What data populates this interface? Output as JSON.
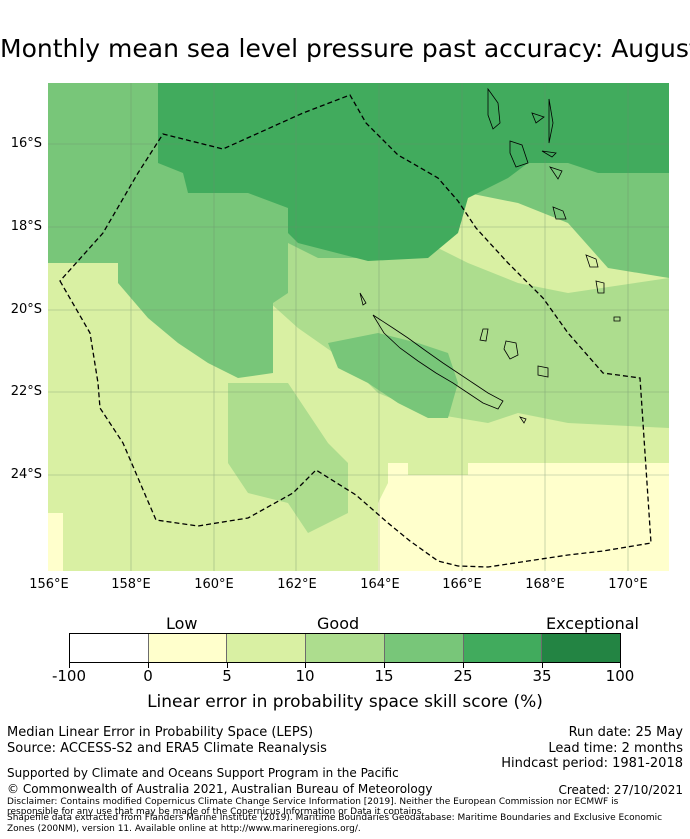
{
  "title": "Monthly mean sea level pressure past accuracy: August",
  "map": {
    "lat_labels": [
      "16°S",
      "18°S",
      "20°S",
      "22°S",
      "24°S"
    ],
    "lon_labels": [
      "156°E",
      "158°E",
      "160°E",
      "162°E",
      "164°E",
      "166°E",
      "168°E",
      "170°E"
    ],
    "boundary": "dashed EEZ outline",
    "zone_colors": [
      "#ffffcc",
      "#d9f0a3",
      "#addd8e",
      "#78c679",
      "#41ab5d",
      "#238443"
    ]
  },
  "legend": {
    "categories": [
      "Low",
      "Good",
      "Exceptional"
    ],
    "ticks": [
      "-100",
      "0",
      "5",
      "10",
      "15",
      "25",
      "35",
      "100"
    ],
    "colors": [
      "#ffffff",
      "#ffffcc",
      "#d9f0a3",
      "#addd8e",
      "#78c679",
      "#41ab5d",
      "#238443"
    ],
    "title": "Linear error in probability space skill score (%)"
  },
  "footer": {
    "line1": "Median Linear Error in Probability Space (LEPS)",
    "line2": "Source: ACCESS-S2 and ERA5 Climate Reanalysis",
    "run_date": "Run date: 25 May",
    "lead_time": "Lead time: 2 months",
    "hindcast": "Hindcast period: 1981-2018",
    "supported": "Supported by Climate and Oceans Support Program in the Pacific",
    "copyright": "© Commonwealth of Australia 2021, Australian Bureau of Meteorology",
    "created": "Created: 27/10/2021",
    "disclaimer1": "Disclaimer: Contains modified Copernicus Climate Change Service Information [2019]. Neither the European Commission nor ECMWF is",
    "disclaimer2": "responsible for any use that may be made of the Copernicus Information or Data it contains.",
    "shapefile1": "Shapefile data extracted from Flanders Marine Institute (2019). Maritime Boundaries Geodatabase: Maritime Boundaries and Exclusive Economic",
    "shapefile2": "Zones (200NM), version 11. Available online at http://www.marineregions.org/."
  }
}
